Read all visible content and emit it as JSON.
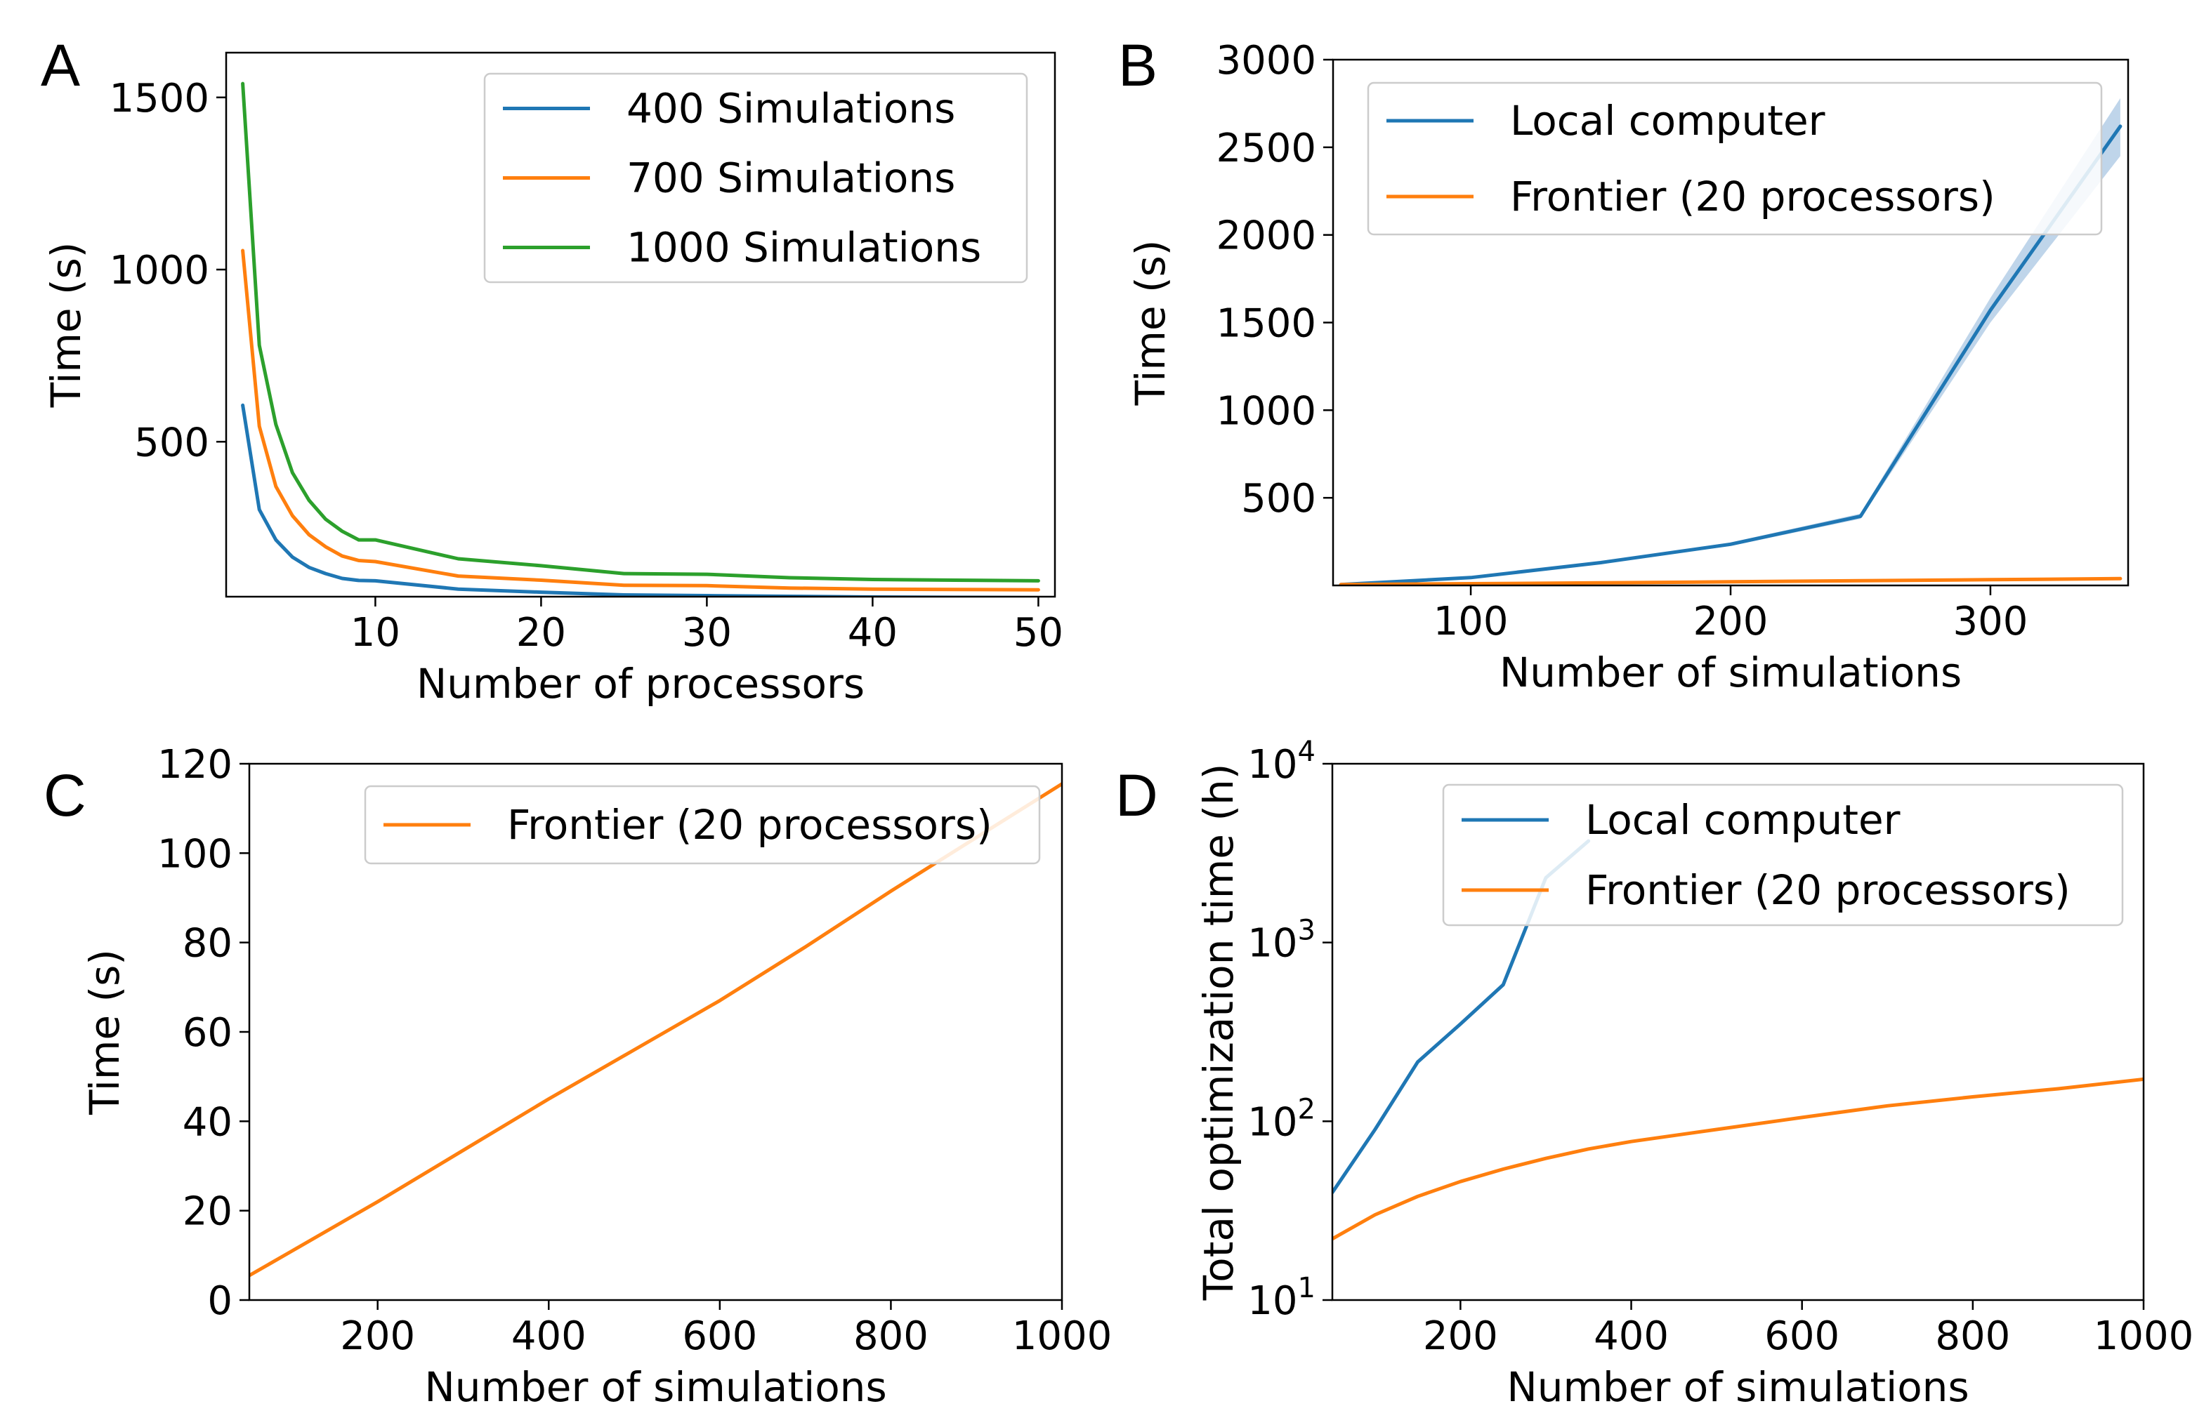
{
  "colors": {
    "blue": "#1f77b4",
    "orange": "#ff7f0e",
    "green": "#2ca02c",
    "band": "#a9c7e3"
  },
  "chart_data": [
    {
      "id": "A",
      "panel_label": "A",
      "type": "line",
      "xlabel": "Number of processors",
      "ylabel": "Time (s)",
      "xlim": [
        1,
        51
      ],
      "ylim": [
        50,
        1630
      ],
      "xticks": [
        10,
        20,
        30,
        40,
        50
      ],
      "xtick_labels": [
        "10",
        "20",
        "30",
        "40",
        "50"
      ],
      "yticks": [
        500,
        1000,
        1500
      ],
      "ytick_labels": [
        "500",
        "1000",
        "1500"
      ],
      "legend_position": "top-right",
      "x": [
        2,
        3,
        4,
        5,
        6,
        7,
        8,
        9,
        10,
        15,
        20,
        25,
        30,
        35,
        40,
        45,
        50
      ],
      "series": [
        {
          "name": "400 Simulations",
          "color": "blue",
          "values": [
            606,
            303,
            215,
            165,
            135,
            117,
            103,
            97,
            96,
            72,
            63,
            55,
            53,
            51,
            49,
            48,
            47
          ]
        },
        {
          "name": "700 Simulations",
          "color": "orange",
          "values": [
            1055,
            545,
            370,
            285,
            230,
            195,
            168,
            155,
            152,
            110,
            98,
            83,
            82,
            75,
            72,
            71,
            70
          ]
        },
        {
          "name": "1000 Simulations",
          "color": "green",
          "values": [
            1540,
            780,
            550,
            410,
            330,
            275,
            240,
            215,
            215,
            160,
            140,
            117,
            115,
            105,
            100,
            98,
            96
          ]
        }
      ]
    },
    {
      "id": "B",
      "panel_label": "B",
      "type": "line",
      "xlabel": "Number of simulations",
      "ylabel": "Time (s)",
      "xlim": [
        47,
        353
      ],
      "ylim": [
        0,
        3000
      ],
      "xticks": [
        100,
        200,
        300
      ],
      "xtick_labels": [
        "100",
        "200",
        "300"
      ],
      "yticks": [
        500,
        1000,
        1500,
        2000,
        2500,
        3000
      ],
      "ytick_labels": [
        "500",
        "1000",
        "1500",
        "2000",
        "2500",
        "3000"
      ],
      "legend_position": "top-right",
      "x": [
        50,
        100,
        150,
        200,
        250,
        300,
        350
      ],
      "series": [
        {
          "name": "Local computer",
          "color": "blue",
          "values": [
            5,
            45,
            130,
            235,
            395,
            1570,
            2620
          ],
          "band_low": [
            5,
            45,
            125,
            225,
            380,
            1500,
            2450
          ],
          "band_high": [
            5,
            45,
            135,
            245,
            410,
            1640,
            2780
          ]
        },
        {
          "name": "Frontier (20 processors)",
          "color": "orange",
          "values": [
            5,
            10,
            15,
            21,
            27,
            33,
            39
          ]
        }
      ]
    },
    {
      "id": "C",
      "panel_label": "C",
      "type": "line",
      "xlabel": "Number of simulations",
      "ylabel": "Time (s)",
      "xlim": [
        50,
        1000
      ],
      "ylim": [
        0,
        120
      ],
      "xticks": [
        200,
        400,
        600,
        800,
        1000
      ],
      "xtick_labels": [
        "200",
        "400",
        "600",
        "800",
        "1000"
      ],
      "yticks": [
        0,
        20,
        40,
        60,
        80,
        100,
        120
      ],
      "ytick_labels": [
        "0",
        "20",
        "40",
        "60",
        "80",
        "100",
        "120"
      ],
      "legend_position": "top-right",
      "x": [
        50,
        100,
        200,
        300,
        400,
        500,
        600,
        700,
        800,
        900,
        1000
      ],
      "series": [
        {
          "name": "Frontier (20 processors)",
          "color": "orange",
          "values": [
            5.5,
            11,
            22,
            33.5,
            45,
            56,
            67,
            79,
            91.5,
            103.5,
            115.5
          ]
        }
      ]
    },
    {
      "id": "D",
      "panel_label": "D",
      "type": "line",
      "yscale": "log",
      "xlabel": "Number of simulations",
      "ylabel": "Total optimization time (h)",
      "xlim": [
        50,
        1000
      ],
      "ylim": [
        10,
        10000
      ],
      "xticks": [
        200,
        400,
        600,
        800,
        1000
      ],
      "xtick_labels": [
        "200",
        "400",
        "600",
        "800",
        "1000"
      ],
      "yticks": [
        10,
        100,
        1000,
        10000
      ],
      "ytick_base": "10",
      "ytick_exponents": [
        "1",
        "2",
        "3",
        "4"
      ],
      "legend_position": "top-right",
      "x_blue": [
        50,
        100,
        150,
        200,
        250,
        300,
        350
      ],
      "x_orange": [
        50,
        100,
        150,
        200,
        250,
        300,
        350,
        400,
        500,
        600,
        700,
        800,
        900,
        1000
      ],
      "series": [
        {
          "name": "Local computer",
          "color": "blue",
          "values": [
            40,
            90,
            215,
            350,
            580,
            2300,
            3700
          ]
        },
        {
          "name": "Frontier (20 processors)",
          "color": "orange",
          "values": [
            22,
            30,
            38,
            46,
            54,
            62,
            70,
            77,
            90,
            105,
            122,
            137,
            152,
            172
          ]
        }
      ]
    }
  ]
}
